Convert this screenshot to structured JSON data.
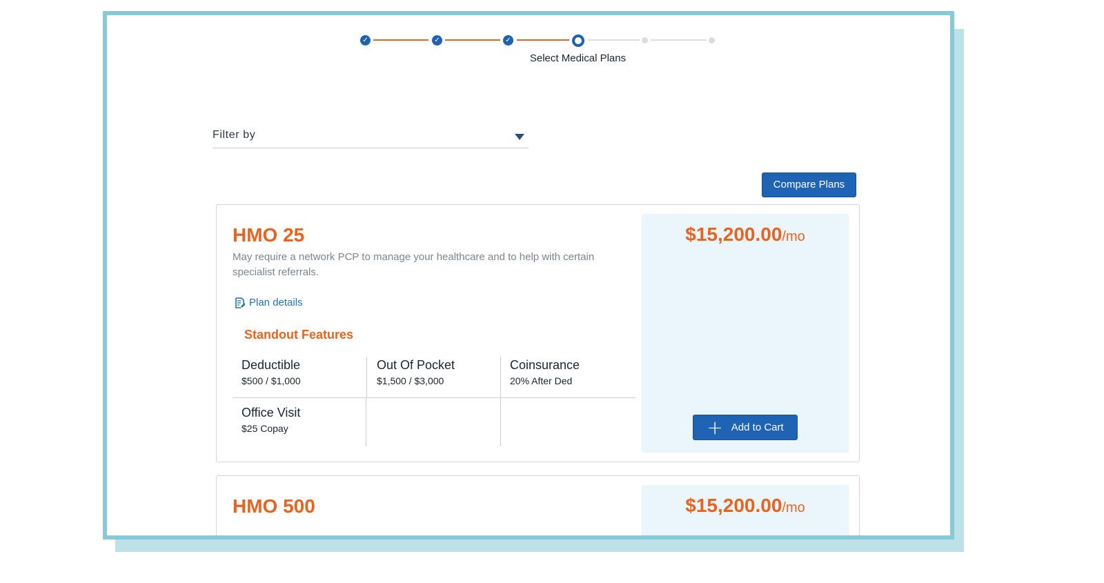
{
  "stepper": {
    "current_step_label": "Select Medical Plans",
    "completed_steps": 3,
    "total_steps": 6,
    "done_color": "#e8641e",
    "active_color": "#1f62b3"
  },
  "filter": {
    "label": "Filter by",
    "icon": "caret-down-icon"
  },
  "compare_button_label": "Compare Plans",
  "plans": [
    {
      "name": "HMO 25",
      "description": "May require a network PCP to manage your healthcare and to help with certain specialist referrals.",
      "details_link": "Plan details",
      "features_title": "Standout Features",
      "features": [
        {
          "name": "Deductible",
          "value": "$500 / $1,000"
        },
        {
          "name": "Out Of Pocket",
          "value": "$1,500 / $3,000"
        },
        {
          "name": "Coinsurance",
          "value": "20% After Ded"
        },
        {
          "name": "Office Visit",
          "value": "$25 Copay"
        }
      ],
      "price": "$15,200.00",
      "price_unit": "/mo",
      "add_to_cart_label": "Add to Cart"
    },
    {
      "name": "HMO 500",
      "price": "$15,200.00",
      "price_unit": "/mo"
    }
  ],
  "colors": {
    "accent_orange": "#e8641e",
    "primary_blue": "#1f64b4",
    "frame_border": "#86cad7",
    "price_panel_bg": "#eaf6fc"
  }
}
